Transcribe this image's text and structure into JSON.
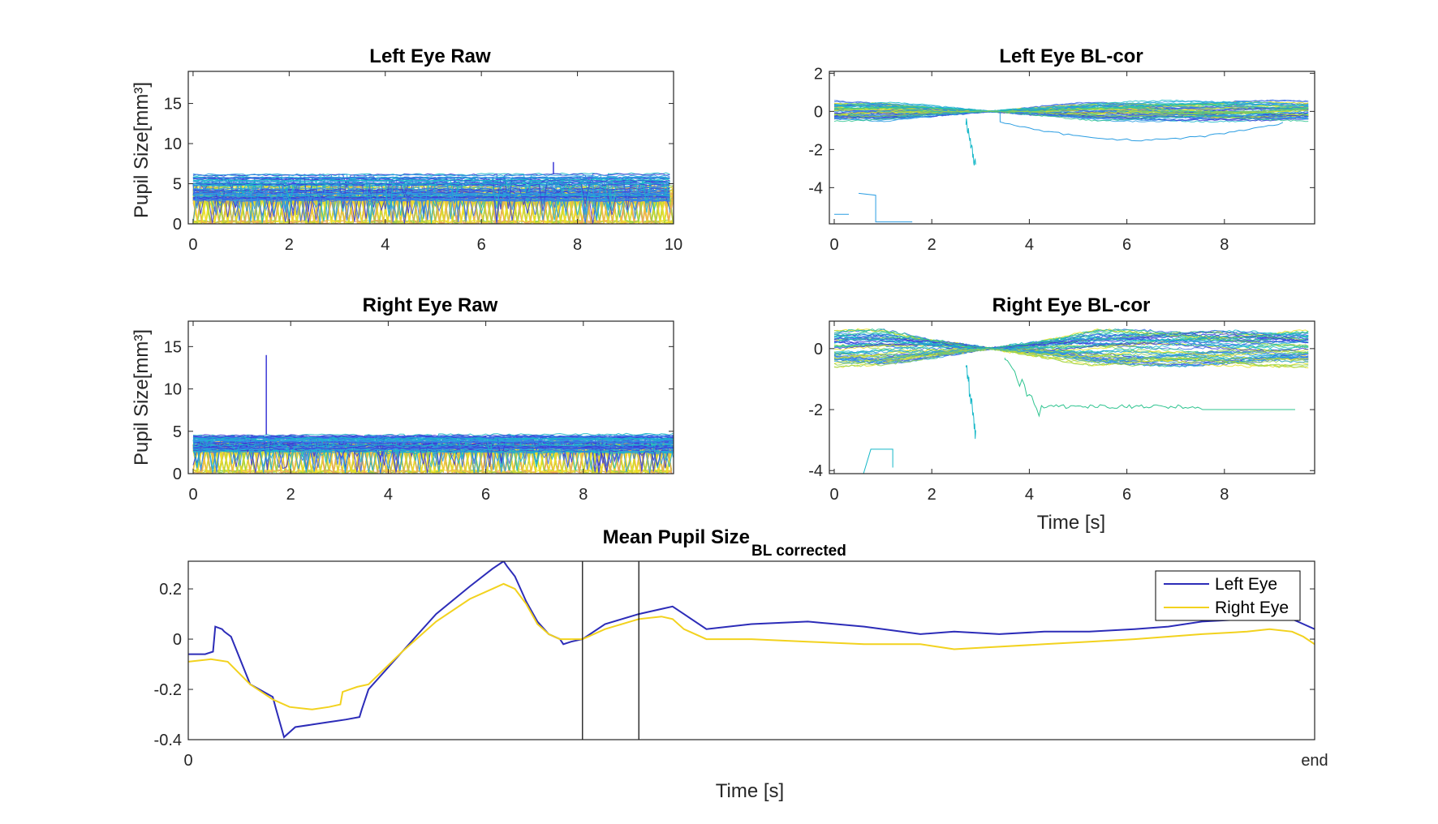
{
  "colors": {
    "left_mean": "#2c2cb8",
    "right_mean": "#f2d21e",
    "palette": [
      "#3b39d6",
      "#3d6fe8",
      "#2a9de2",
      "#16b8c8",
      "#2ec48f",
      "#8fd04f",
      "#e8e020",
      "#f5e12a",
      "#f0a060"
    ]
  },
  "chart_data": [
    {
      "id": "left_raw",
      "type": "line",
      "title": "Left Eye Raw",
      "ylabel": "Pupil Size[mm³]",
      "xlabel": "",
      "xlim": [
        -0.1,
        10
      ],
      "ylim": [
        0,
        19
      ],
      "xticks": [
        0,
        2,
        4,
        6,
        8,
        10
      ],
      "yticks": [
        0,
        5,
        10,
        15
      ],
      "xtick_labels": [
        "0",
        "2",
        "4",
        "6",
        "8",
        "10"
      ],
      "ytick_labels": [
        "0",
        "5",
        "10",
        "15"
      ],
      "style": "raw",
      "traces": 60,
      "series_note": "many overlapping trial traces",
      "level_range": [
        2.8,
        6.2
      ],
      "spike": {
        "x": 7.5,
        "y": 7.7
      }
    },
    {
      "id": "left_bl",
      "type": "line",
      "title": "Left Eye BL-cor",
      "ylabel": "",
      "xlabel": "",
      "xlim": [
        -0.1,
        9.85
      ],
      "ylim": [
        -5.9,
        2.1
      ],
      "xticks": [
        0,
        2,
        4,
        6,
        8
      ],
      "yticks": [
        -4,
        -2,
        0,
        2
      ],
      "xtick_labels": [
        "0",
        "2",
        "4",
        "6",
        "8"
      ],
      "ytick_labels": [
        "-4",
        "-2",
        "0",
        "2"
      ],
      "style": "bl",
      "traces": 55,
      "spread": 0.45
    },
    {
      "id": "right_raw",
      "type": "line",
      "title": "Right Eye Raw",
      "ylabel": "Pupil Size[mm³]",
      "xlabel": "",
      "xlim": [
        -0.1,
        9.85
      ],
      "ylim": [
        0,
        18
      ],
      "xticks": [
        0,
        2,
        4,
        6,
        8
      ],
      "yticks": [
        0,
        5,
        10,
        15
      ],
      "xtick_labels": [
        "0",
        "2",
        "4",
        "6",
        "8"
      ],
      "ytick_labels": [
        "0",
        "5",
        "10",
        "15"
      ],
      "style": "raw",
      "traces": 60,
      "level_range": [
        2.6,
        4.6
      ],
      "spike": {
        "x": 1.5,
        "y": 14
      }
    },
    {
      "id": "right_bl",
      "type": "line",
      "title": "Right Eye BL-cor",
      "ylabel": "",
      "xlabel": "Time [s]",
      "xlim": [
        -0.1,
        9.85
      ],
      "ylim": [
        -4.1,
        0.9
      ],
      "xticks": [
        0,
        2,
        4,
        6,
        8
      ],
      "yticks": [
        -4,
        -2,
        0
      ],
      "xtick_labels": [
        "0",
        "2",
        "4",
        "6",
        "8"
      ],
      "ytick_labels": [
        "-4",
        "-2",
        "0"
      ],
      "style": "bl",
      "traces": 55,
      "spread": 0.5
    },
    {
      "id": "mean",
      "type": "line",
      "title": "Mean Pupil Size",
      "title_subscript": "BL corrected",
      "ylabel": "",
      "xlabel": "Time [s]",
      "xlim": [
        0,
        100
      ],
      "ylim": [
        -0.4,
        0.31
      ],
      "xticks": [
        0,
        100
      ],
      "yticks": [
        -0.4,
        -0.2,
        0,
        0.2
      ],
      "xtick_labels": [
        "0",
        "end"
      ],
      "ytick_labels": [
        "-0.4",
        "-0.2",
        "0",
        "0.2"
      ],
      "vlines": [
        35,
        40
      ],
      "legend": {
        "position": "top-right",
        "entries": [
          "Left Eye",
          "Right Eye"
        ]
      },
      "series": [
        {
          "name": "Left Eye",
          "color": "#2c2cb8",
          "x": [
            0,
            1.5,
            2.2,
            2.4,
            3.0,
            3.2,
            3.8,
            5.5,
            7.5,
            7.8,
            8.5,
            9.5,
            11,
            12.5,
            14,
            15.2,
            15.4,
            16,
            19,
            22,
            25,
            27,
            28,
            28.3,
            29,
            30,
            31,
            32,
            33,
            33.3,
            34,
            35,
            37,
            40,
            42,
            43,
            44,
            46,
            50,
            55,
            60,
            65,
            68,
            72,
            76,
            80,
            84,
            87,
            90,
            94,
            96,
            98,
            99,
            100
          ],
          "y": [
            -0.06,
            -0.06,
            -0.05,
            0.05,
            0.04,
            0.03,
            0.01,
            -0.18,
            -0.23,
            -0.28,
            -0.39,
            -0.35,
            -0.34,
            -0.33,
            -0.32,
            -0.31,
            -0.28,
            -0.2,
            -0.05,
            0.1,
            0.21,
            0.28,
            0.31,
            0.29,
            0.25,
            0.15,
            0.07,
            0.02,
            0.0,
            -0.02,
            -0.01,
            0.0,
            0.06,
            0.1,
            0.12,
            0.13,
            0.1,
            0.04,
            0.06,
            0.07,
            0.05,
            0.02,
            0.03,
            0.02,
            0.03,
            0.03,
            0.04,
            0.05,
            0.07,
            0.08,
            0.09,
            0.08,
            0.06,
            0.04
          ]
        },
        {
          "name": "Right Eye",
          "color": "#f2d21e",
          "x": [
            0,
            2,
            3.5,
            5.5,
            7.5,
            9,
            11,
            12.5,
            13.5,
            13.7,
            15,
            16,
            19,
            22,
            25,
            27,
            28,
            29,
            30,
            31,
            32,
            33,
            35,
            37,
            40,
            42,
            43,
            44,
            46,
            50,
            55,
            60,
            65,
            68,
            72,
            76,
            80,
            84,
            87,
            90,
            94,
            96,
            98,
            99,
            100
          ],
          "y": [
            -0.09,
            -0.08,
            -0.09,
            -0.18,
            -0.24,
            -0.27,
            -0.28,
            -0.27,
            -0.26,
            -0.21,
            -0.19,
            -0.18,
            -0.05,
            0.07,
            0.16,
            0.2,
            0.22,
            0.2,
            0.14,
            0.06,
            0.02,
            0.0,
            0.0,
            0.04,
            0.08,
            0.09,
            0.08,
            0.04,
            0.0,
            0.0,
            -0.01,
            -0.02,
            -0.02,
            -0.04,
            -0.03,
            -0.02,
            -0.01,
            0.0,
            0.01,
            0.02,
            0.03,
            0.04,
            0.03,
            0.01,
            -0.02
          ]
        }
      ]
    }
  ]
}
